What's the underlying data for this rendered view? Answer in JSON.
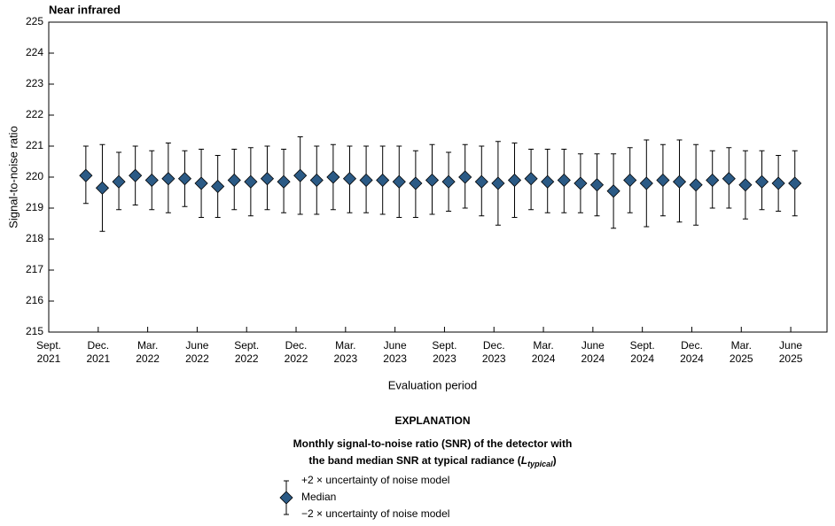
{
  "chart_data": {
    "type": "errorbar",
    "title": "Near infrared",
    "x_label": "Evaluation period",
    "y_label": "Signal-to-noise ratio",
    "xlim": [
      0,
      47.2
    ],
    "xticks": [
      {
        "value": 0,
        "label": "Sept.\n2021"
      },
      {
        "value": 3,
        "label": "Dec.\n2021"
      },
      {
        "value": 6,
        "label": "Mar.\n2022"
      },
      {
        "value": 9,
        "label": "June\n2022"
      },
      {
        "value": 12,
        "label": "Sept.\n2022"
      },
      {
        "value": 15,
        "label": "Dec.\n2022"
      },
      {
        "value": 18,
        "label": "Mar.\n2023"
      },
      {
        "value": 21,
        "label": "June\n2023"
      },
      {
        "value": 24,
        "label": "Sept.\n2023"
      },
      {
        "value": 27,
        "label": "Dec.\n2023"
      },
      {
        "value": 30,
        "label": "Mar.\n2024"
      },
      {
        "value": 33,
        "label": "June\n2024"
      },
      {
        "value": 36,
        "label": "Sept.\n2024"
      },
      {
        "value": 39,
        "label": "Dec.\n2024"
      },
      {
        "value": 42,
        "label": "Mar.\n2025"
      },
      {
        "value": 45,
        "label": "June\n2025"
      }
    ],
    "ylim": [
      215,
      225
    ],
    "yticks": [
      215,
      216,
      217,
      218,
      219,
      220,
      221,
      222,
      223,
      224,
      225
    ],
    "x": [
      2.25,
      3.25,
      4.25,
      5.25,
      6.25,
      7.25,
      8.25,
      9.25,
      10.25,
      11.25,
      12.25,
      13.25,
      14.25,
      15.25,
      16.25,
      17.25,
      18.25,
      19.25,
      20.25,
      21.25,
      22.25,
      23.25,
      24.25,
      25.25,
      26.25,
      27.25,
      28.25,
      29.25,
      30.25,
      31.25,
      32.25,
      33.25,
      34.25,
      35.25,
      36.25,
      37.25,
      38.25,
      39.25,
      40.25,
      41.25,
      42.25,
      43.25,
      44.25,
      45.25
    ],
    "series": [
      {
        "name": "Median",
        "color": "#2b5a85",
        "values": [
          220.05,
          219.65,
          219.85,
          220.05,
          219.9,
          219.95,
          219.95,
          219.8,
          219.7,
          219.9,
          219.85,
          219.95,
          219.85,
          220.05,
          219.9,
          220.0,
          219.95,
          219.9,
          219.9,
          219.85,
          219.8,
          219.9,
          219.85,
          220.0,
          219.85,
          219.8,
          219.9,
          219.95,
          219.85,
          219.9,
          219.8,
          219.75,
          219.55,
          219.9,
          219.8,
          219.9,
          219.85,
          219.75,
          219.9,
          219.95,
          219.75,
          219.85,
          219.8,
          219.8
        ],
        "high": [
          221.0,
          221.05,
          220.8,
          221.0,
          220.85,
          221.1,
          220.85,
          220.9,
          220.7,
          220.9,
          220.95,
          221.0,
          220.9,
          221.3,
          221.0,
          221.05,
          221.0,
          221.0,
          221.0,
          221.0,
          220.85,
          221.05,
          220.8,
          221.05,
          221.0,
          221.15,
          221.1,
          220.9,
          220.9,
          220.9,
          220.75,
          220.75,
          220.75,
          220.95,
          221.2,
          221.05,
          221.2,
          221.05,
          220.85,
          220.95,
          220.85,
          220.85,
          220.7,
          220.85
        ],
        "low": [
          219.15,
          218.25,
          218.95,
          219.1,
          218.95,
          218.85,
          219.05,
          218.7,
          218.7,
          218.95,
          218.75,
          218.95,
          218.85,
          218.8,
          218.8,
          218.95,
          218.85,
          218.85,
          218.8,
          218.7,
          218.7,
          218.8,
          218.9,
          219.0,
          218.75,
          218.45,
          218.7,
          218.95,
          218.85,
          218.85,
          218.85,
          218.75,
          218.35,
          218.85,
          218.4,
          218.75,
          218.55,
          218.45,
          219.0,
          219.0,
          218.65,
          218.95,
          218.9,
          218.75
        ]
      }
    ],
    "legend": {
      "title": "EXPLANATION",
      "description_line1": "Monthly signal-to-noise ratio (SNR) of the detector with",
      "description_line2": "the band median SNR at typical radiance (",
      "description_symbol": "L",
      "description_subscript": "typical",
      "description_end": ")",
      "high_label": "+2 × uncertainty of noise model",
      "low_label": "−2 × uncertainty of noise model"
    }
  }
}
